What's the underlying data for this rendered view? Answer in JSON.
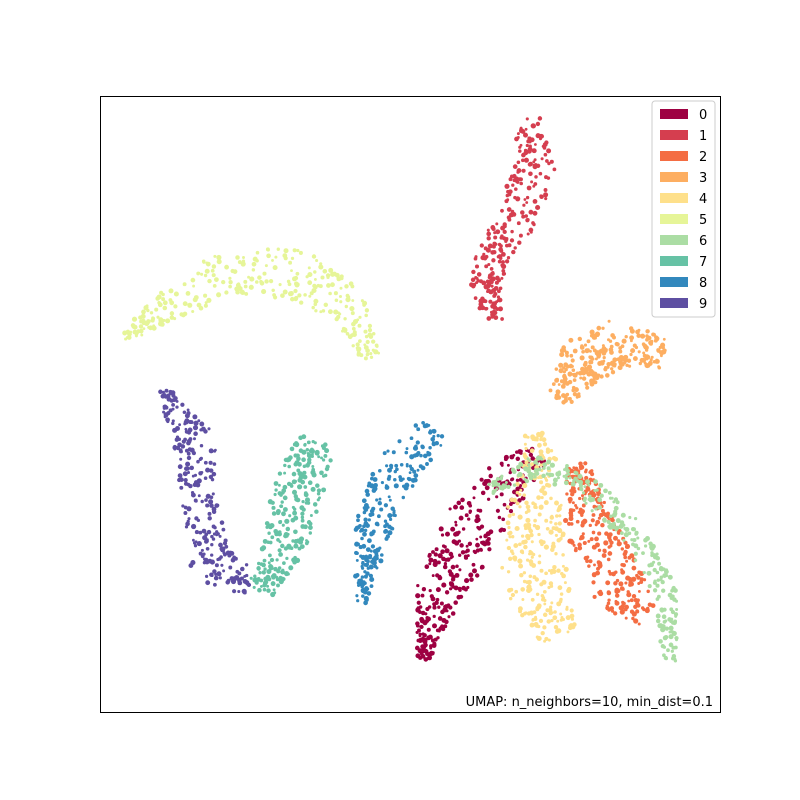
{
  "chart_data": {
    "type": "scatter",
    "title": "",
    "xlabel": "",
    "ylabel": "",
    "ticks_shown": false,
    "grid": false,
    "annotation": "UMAP: n_neighbors=10, min_dist=0.1",
    "legend": {
      "location": "top-right",
      "entries": [
        {
          "label": "0",
          "color": "#9e0142"
        },
        {
          "label": "1",
          "color": "#d53e4f"
        },
        {
          "label": "2",
          "color": "#f46d43"
        },
        {
          "label": "3",
          "color": "#fdae61"
        },
        {
          "label": "4",
          "color": "#fee08b"
        },
        {
          "label": "5",
          "color": "#e6f598"
        },
        {
          "label": "6",
          "color": "#abdda4"
        },
        {
          "label": "7",
          "color": "#66c2a5"
        },
        {
          "label": "8",
          "color": "#3288bd"
        },
        {
          "label": "9",
          "color": "#5e4fa2"
        }
      ]
    },
    "clusters": [
      {
        "label": "1",
        "color": "#d53e4f",
        "path": [
          [
            0.69,
            0.04
          ],
          [
            0.7,
            0.12
          ],
          [
            0.67,
            0.2
          ],
          [
            0.63,
            0.26
          ],
          [
            0.62,
            0.32
          ],
          [
            0.64,
            0.36
          ]
        ],
        "width": [
          0.02,
          0.035,
          0.032,
          0.028,
          0.024,
          0.01
        ],
        "n": 260
      },
      {
        "label": "5",
        "color": "#e6f598",
        "path": [
          [
            0.04,
            0.39
          ],
          [
            0.12,
            0.33
          ],
          [
            0.22,
            0.28
          ],
          [
            0.32,
            0.29
          ],
          [
            0.4,
            0.34
          ],
          [
            0.44,
            0.43
          ]
        ],
        "width": [
          0.008,
          0.03,
          0.04,
          0.04,
          0.032,
          0.016
        ],
        "n": 300
      },
      {
        "label": "9",
        "color": "#5e4fa2",
        "path": [
          [
            0.1,
            0.48
          ],
          [
            0.15,
            0.56
          ],
          [
            0.16,
            0.66
          ],
          [
            0.18,
            0.76
          ],
          [
            0.24,
            0.79
          ]
        ],
        "width": [
          0.01,
          0.035,
          0.028,
          0.035,
          0.02
        ],
        "n": 260
      },
      {
        "label": "7",
        "color": "#66c2a5",
        "path": [
          [
            0.26,
            0.8
          ],
          [
            0.3,
            0.72
          ],
          [
            0.32,
            0.63
          ],
          [
            0.35,
            0.56
          ]
        ],
        "width": [
          0.022,
          0.036,
          0.042,
          0.03
        ],
        "n": 260
      },
      {
        "label": "8",
        "color": "#3288bd",
        "path": [
          [
            0.42,
            0.82
          ],
          [
            0.44,
            0.7
          ],
          [
            0.48,
            0.6
          ],
          [
            0.54,
            0.54
          ]
        ],
        "width": [
          0.012,
          0.03,
          0.036,
          0.025
        ],
        "n": 230
      },
      {
        "label": "0",
        "color": "#9e0142",
        "path": [
          [
            0.52,
            0.91
          ],
          [
            0.55,
            0.8
          ],
          [
            0.6,
            0.7
          ],
          [
            0.66,
            0.62
          ],
          [
            0.71,
            0.58
          ]
        ],
        "width": [
          0.012,
          0.04,
          0.048,
          0.036,
          0.018
        ],
        "n": 320
      },
      {
        "label": "3",
        "color": "#fdae61",
        "path": [
          [
            0.74,
            0.49
          ],
          [
            0.78,
            0.43
          ],
          [
            0.84,
            0.4
          ],
          [
            0.91,
            0.42
          ]
        ],
        "width": [
          0.02,
          0.04,
          0.04,
          0.022
        ],
        "n": 260
      },
      {
        "label": "4",
        "color": "#fee08b",
        "path": [
          [
            0.7,
            0.55
          ],
          [
            0.71,
            0.6
          ],
          [
            0.7,
            0.68
          ],
          [
            0.7,
            0.78
          ],
          [
            0.74,
            0.88
          ]
        ],
        "width": [
          0.015,
          0.03,
          0.045,
          0.055,
          0.03
        ],
        "n": 300
      },
      {
        "label": "2",
        "color": "#f46d43",
        "path": [
          [
            0.77,
            0.6
          ],
          [
            0.79,
            0.7
          ],
          [
            0.84,
            0.8
          ],
          [
            0.88,
            0.84
          ]
        ],
        "width": [
          0.018,
          0.04,
          0.045,
          0.022
        ],
        "n": 280
      },
      {
        "label": "6",
        "color": "#abdda4",
        "path": [
          [
            0.63,
            0.64
          ],
          [
            0.7,
            0.6
          ],
          [
            0.78,
            0.63
          ],
          [
            0.86,
            0.71
          ],
          [
            0.91,
            0.8
          ],
          [
            0.92,
            0.92
          ]
        ],
        "width": [
          0.01,
          0.018,
          0.022,
          0.02,
          0.02,
          0.01
        ],
        "n": 260
      }
    ]
  }
}
